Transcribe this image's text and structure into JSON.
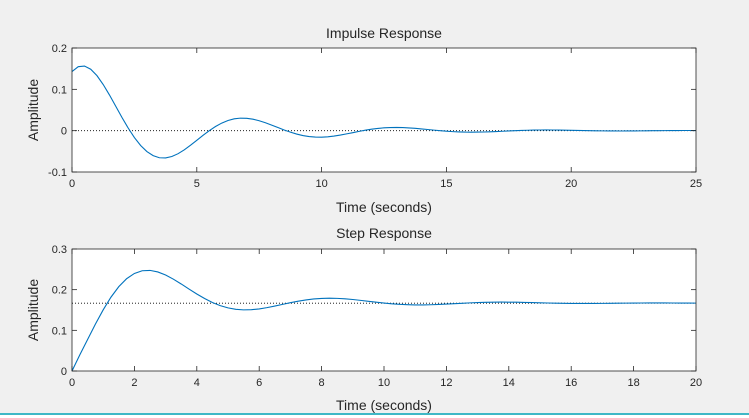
{
  "chart_data": [
    {
      "type": "line",
      "title": "Impulse Response",
      "xlabel": "Time (seconds)",
      "ylabel": "Amplitude",
      "xlim": [
        0,
        25
      ],
      "ylim": [
        -0.1,
        0.2
      ],
      "xticks": [
        "0",
        "5",
        "10",
        "15",
        "20",
        "25"
      ],
      "yticks": [
        "-0.1",
        "0",
        "0.1",
        "0.2"
      ],
      "reference_line": 0,
      "grid": false,
      "color": "#0072BD",
      "series": [
        {
          "x": [
            0,
            0.25,
            0.5,
            0.75,
            1,
            1.25,
            1.5,
            1.75,
            2,
            2.25,
            2.5,
            2.75,
            3,
            3.25,
            3.5,
            3.75,
            4,
            4.25,
            4.5,
            4.75,
            5,
            5.25,
            5.5,
            5.75,
            6,
            6.25,
            6.5,
            6.75,
            7,
            7.25,
            7.5,
            7.75,
            8,
            8.25,
            8.5,
            8.75,
            9,
            9.25,
            9.5,
            9.75,
            10,
            10.25,
            10.5,
            10.75,
            11,
            11.25,
            11.5,
            11.75,
            12,
            12.25,
            12.5,
            12.75,
            13,
            13.25,
            13.5,
            13.75,
            14,
            14.25,
            14.5,
            14.75,
            15,
            15.25,
            15.5,
            15.75,
            16,
            16.25,
            16.5,
            16.75,
            17,
            17.25,
            17.5,
            17.75,
            18,
            18.25,
            18.5,
            18.75,
            19,
            19.25,
            19.5,
            19.75,
            20,
            20.25,
            20.5,
            20.75,
            21,
            21.25,
            21.5,
            21.75,
            22,
            22.25,
            22.5,
            22.75,
            23,
            23.25,
            23.5,
            23.75,
            24,
            24.25,
            24.5,
            24.75,
            25
          ],
          "y": [
            0.143,
            0.1548,
            0.1563,
            0.1486,
            0.1331,
            0.1117,
            0.0865,
            0.0593,
            0.0321,
            0.0064,
            -0.0166,
            -0.0358,
            -0.0505,
            -0.0604,
            -0.0655,
            -0.066,
            -0.0625,
            -0.0557,
            -0.0463,
            -0.0352,
            -0.0233,
            -0.0113,
            0,
            0.0101,
            0.0184,
            0.0246,
            0.0286,
            0.0303,
            0.03,
            0.0278,
            0.024,
            0.0191,
            0.0135,
            0.0076,
            0.0017,
            -0.0036,
            -0.0082,
            -0.0118,
            -0.0142,
            -0.0155,
            -0.0157,
            -0.0148,
            -0.0131,
            -0.0107,
            -0.0078,
            -0.0048,
            -0.0017,
            0.0011,
            0.0035,
            0.0054,
            0.0068,
            0.0076,
            0.0078,
            0.0075,
            0.0067,
            0.0056,
            0.0043,
            0.0028,
            0.0013,
            -0.0001,
            -0.0013,
            -0.0023,
            -0.003,
            -0.0035,
            -0.0036,
            -0.0035,
            -0.0032,
            -0.0027,
            -0.0021,
            -0.0014,
            -0.0007,
            0,
            0.0006,
            0.001,
            0.0014,
            0.0016,
            0.0017,
            0.0016,
            0.0015,
            0.0012,
            0.0009,
            0.0006,
            0.0003,
            0,
            -0.0003,
            -0.0005,
            -0.0007,
            -0.0007,
            -0.0008,
            -0.0007,
            -0.0006,
            -0.0005,
            -0.0003,
            -0.0001,
            0,
            0.0001,
            0.0003,
            0.0003,
            0.0004,
            0.0004,
            0.0003
          ]
        }
      ]
    },
    {
      "type": "line",
      "title": "Step Response",
      "xlabel": "Time (seconds)",
      "ylabel": "Amplitude",
      "xlim": [
        0,
        20
      ],
      "ylim": [
        0,
        0.3
      ],
      "xticks": [
        "0",
        "2",
        "4",
        "6",
        "8",
        "10",
        "12",
        "14",
        "16",
        "18",
        "20"
      ],
      "yticks": [
        "0",
        "0.1",
        "0.2",
        "0.3"
      ],
      "reference_line": 0.1667,
      "grid": false,
      "color": "#0072BD",
      "series": [
        {
          "x": [
            0,
            0.25,
            0.5,
            0.75,
            1,
            1.25,
            1.5,
            1.75,
            2,
            2.25,
            2.5,
            2.75,
            3,
            3.25,
            3.5,
            3.75,
            4,
            4.25,
            4.5,
            4.75,
            5,
            5.25,
            5.5,
            5.75,
            6,
            6.25,
            6.5,
            6.75,
            7,
            7.25,
            7.5,
            7.75,
            8,
            8.25,
            8.5,
            8.75,
            9,
            9.25,
            9.5,
            9.75,
            10,
            10.25,
            10.5,
            10.75,
            11,
            11.25,
            11.5,
            11.75,
            12,
            12.25,
            12.5,
            12.75,
            13,
            13.25,
            13.5,
            13.75,
            14,
            14.25,
            14.5,
            14.75,
            15,
            15.25,
            15.5,
            15.75,
            16,
            16.25,
            16.5,
            16.75,
            17,
            17.25,
            17.5,
            17.75,
            18,
            18.25,
            18.5,
            18.75,
            19,
            19.25,
            19.5,
            19.75,
            20
          ],
          "y": [
            0,
            0.0397,
            0.0775,
            0.1152,
            0.1505,
            0.1817,
            0.2075,
            0.2269,
            0.2398,
            0.2465,
            0.2474,
            0.2436,
            0.2361,
            0.2258,
            0.214,
            0.2015,
            0.1894,
            0.1782,
            0.1685,
            0.1608,
            0.1552,
            0.1517,
            0.1503,
            0.1507,
            0.1527,
            0.1558,
            0.1596,
            0.1638,
            0.1679,
            0.1717,
            0.1748,
            0.1771,
            0.1785,
            0.179,
            0.1786,
            0.1775,
            0.1758,
            0.1737,
            0.1714,
            0.1691,
            0.1671,
            0.1653,
            0.1639,
            0.163,
            0.1625,
            0.1625,
            0.1629,
            0.1636,
            0.1645,
            0.1655,
            0.1665,
            0.1675,
            0.1683,
            0.1689,
            0.1693,
            0.1694,
            0.1693,
            0.1691,
            0.1687,
            0.1682,
            0.1677,
            0.1672,
            0.1668,
            0.1665,
            0.1662,
            0.1661,
            0.1661,
            0.1662,
            0.1663,
            0.1665,
            0.1667,
            0.1669,
            0.1671,
            0.1672,
            0.1673,
            0.1673,
            0.1673,
            0.1672,
            0.1671,
            0.167,
            0.1669
          ]
        }
      ]
    }
  ]
}
